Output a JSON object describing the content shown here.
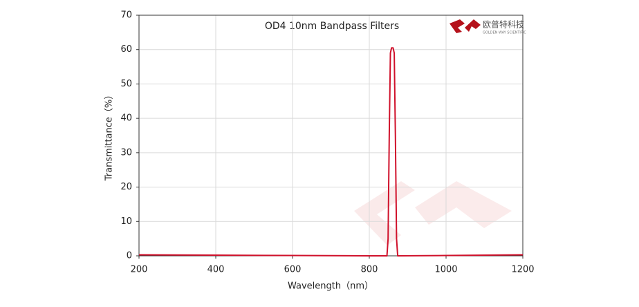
{
  "chart_data": {
    "type": "line",
    "title": "OD4 10nm Bandpass Filters",
    "x_label": "Wavelength（nm）",
    "y_label": "Transmittance（%）",
    "logo": {
      "name": "欧普特科技",
      "subtitle": "GOLDEN WAY SCIENTIFIC"
    },
    "x": [
      200,
      400,
      600,
      800,
      846,
      849,
      852,
      855,
      858,
      862,
      865,
      868,
      871,
      874,
      1000,
      1200
    ],
    "series": [
      {
        "name": "OD4 10nm Bandpass",
        "color": "#d0112b",
        "values": [
          0.3,
          0.2,
          0.1,
          0,
          0,
          5,
          35,
          59,
          60.5,
          60.5,
          59,
          35,
          5,
          0,
          0.1,
          0.3
        ]
      }
    ],
    "xlim": [
      200,
      1200
    ],
    "ylim": [
      0,
      70
    ],
    "xticks": [
      200,
      400,
      600,
      800,
      1000,
      1200
    ],
    "yticks": [
      0,
      10,
      20,
      30,
      40,
      50,
      60,
      70
    ],
    "grid": true
  }
}
